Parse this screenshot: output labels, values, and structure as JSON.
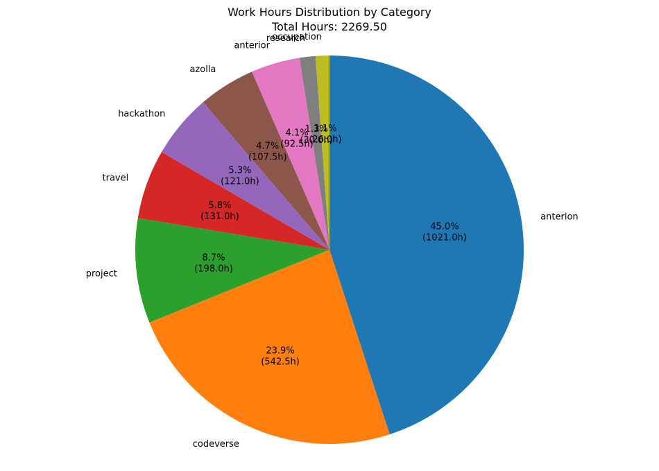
{
  "chart_data": {
    "type": "pie",
    "title": "Work Hours Distribution by Category",
    "subtitle": "Total Hours: 2269.50",
    "start_angle_deg": 90,
    "direction": "clockwise",
    "slices": [
      {
        "label": "anterion",
        "value": 1021.0,
        "pct_text": "45.0%",
        "value_text": "(1021.0h)",
        "color": "#1f77b4"
      },
      {
        "label": "codeverse",
        "value": 542.5,
        "pct_text": "23.9%",
        "value_text": "(542.5h)",
        "color": "#ff7f0e"
      },
      {
        "label": "project",
        "value": 198.0,
        "pct_text": "8.7%",
        "value_text": "(198.0h)",
        "color": "#2ca02c"
      },
      {
        "label": "travel",
        "value": 131.0,
        "pct_text": "5.8%",
        "value_text": "(131.0h)",
        "color": "#d62728"
      },
      {
        "label": "hackathon",
        "value": 121.0,
        "pct_text": "5.3%",
        "value_text": "(121.0h)",
        "color": "#9467bd"
      },
      {
        "label": "azolla",
        "value": 107.5,
        "pct_text": "4.7%",
        "value_text": "(107.5h)",
        "color": "#8c564b"
      },
      {
        "label": "anterior",
        "value": 92.5,
        "pct_text": "4.1%",
        "value_text": "(92.5h)",
        "color": "#e377c2"
      },
      {
        "label": "research",
        "value": 30.0,
        "pct_text": "1.3%",
        "value_text": "(30.0h)",
        "color": "#7f7f7f"
      },
      {
        "label": "occupation",
        "value": 26.0,
        "pct_text": "1.1%",
        "value_text": "(26.0h)",
        "color": "#bcbd22"
      }
    ]
  }
}
